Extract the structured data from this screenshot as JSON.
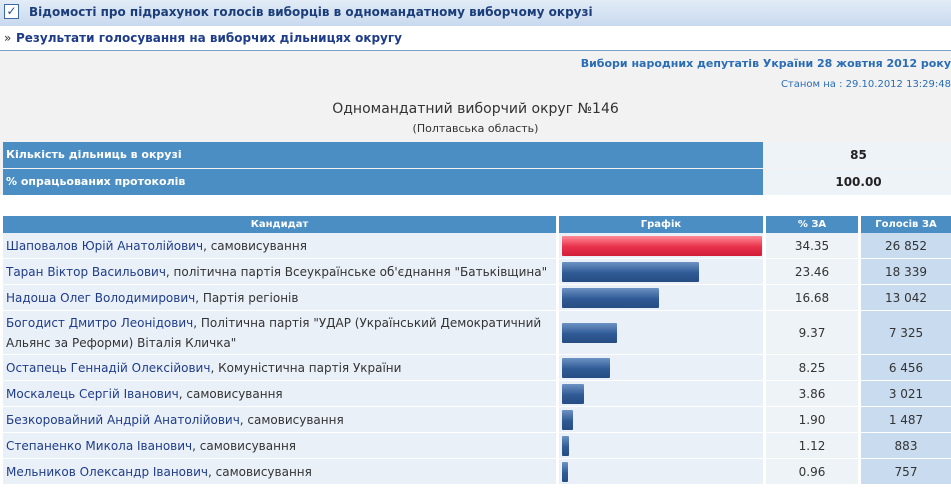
{
  "titlebar": {
    "check_icon": "checkbox-checked-icon",
    "title": "Відомості про підрахунок голосів виборців в одномандатному виборчому окрузі"
  },
  "nav": {
    "raquo": "»",
    "link": "Результати голосування на виборчих дільницях округу"
  },
  "header": {
    "elections": "Вибори народних депутатів України 28 жовтня 2012 року",
    "as_of": "Станом на : 29.10.2012 13:29:48",
    "district": "Одномандатний виборчий округ №146",
    "region": "(Полтавська область)"
  },
  "stats": [
    {
      "label": "Кількість дільниць в окрузі",
      "value": "85"
    },
    {
      "label": "% опрацьованих протоколів",
      "value": "100.00"
    }
  ],
  "table": {
    "headers": [
      "Кандидат",
      "Графік",
      "% ЗА",
      "Голосів ЗА"
    ],
    "rows": [
      {
        "name": "Шаповалов Юрій Анатолійович",
        "party": ", самовисування",
        "pct": "34.35",
        "votes": "26 852",
        "share": 34.35,
        "leader": true
      },
      {
        "name": "Таран Віктор Васильович",
        "party": ", політична партія Всеукраїнське об'єднання \"Батьківщина\"",
        "pct": "23.46",
        "votes": "18 339",
        "share": 23.46
      },
      {
        "name": "Надоша Олег Володимирович",
        "party": ", Партія регіонів",
        "pct": "16.68",
        "votes": "13 042",
        "share": 16.68
      },
      {
        "name": "Богодист Дмитро Леонідович",
        "party": ", Політична партія \"УДАР (Український Демократичний Альянс за Реформи) Віталія Кличка\"",
        "pct": "9.37",
        "votes": "7 325",
        "share": 9.37
      },
      {
        "name": "Остапець Геннадій Олексійович",
        "party": ", Комуністична партія України",
        "pct": "8.25",
        "votes": "6 456",
        "share": 8.25
      },
      {
        "name": "Москалець Сергій Іванович",
        "party": ", самовисування",
        "pct": "3.86",
        "votes": "3 021",
        "share": 3.86
      },
      {
        "name": "Безкоровайний Андрій Анатолійович",
        "party": ", самовисування",
        "pct": "1.90",
        "votes": "1 487",
        "share": 1.9
      },
      {
        "name": "Степаненко Микола Іванович",
        "party": ", самовисування",
        "pct": "1.12",
        "votes": "883",
        "share": 1.12
      },
      {
        "name": "Мельников Олександр Іванович",
        "party": ", самовисування",
        "pct": "0.96",
        "votes": "757",
        "share": 0.96
      }
    ]
  },
  "colors": {
    "header_blue": "#4a8ec4",
    "bar_blue": "#2f5a95",
    "bar_leader_red": "#e8304a",
    "link_blue": "#1f3c8a"
  }
}
